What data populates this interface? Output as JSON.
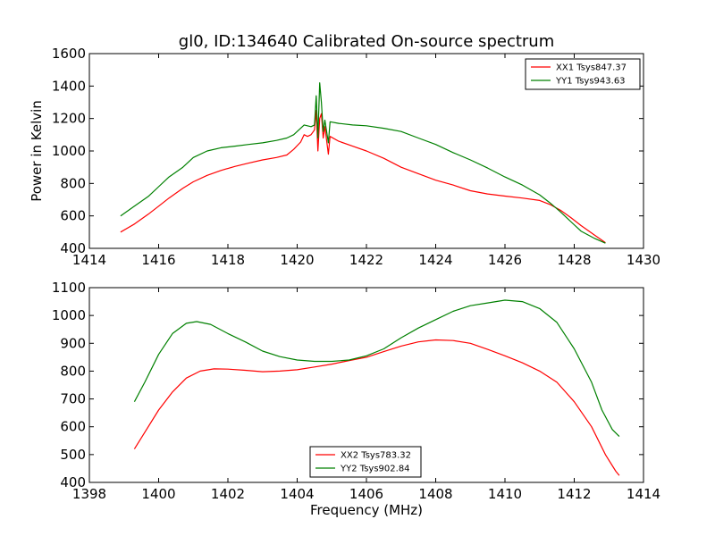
{
  "figure": {
    "title": "gl0, ID:134640 Calibrated On-source spectrum",
    "ylabel": "Power in Kelvin",
    "xlabel": "Frequency (MHz)"
  },
  "chart_data": [
    {
      "type": "line",
      "title": "gl0, ID:134640 Calibrated On-source spectrum",
      "ylabel": "Power in Kelvin",
      "xlabel": "",
      "xlim": [
        1414,
        1430
      ],
      "ylim": [
        400,
        1600
      ],
      "xticks": [
        "1414",
        "1416",
        "1418",
        "1420",
        "1422",
        "1424",
        "1426",
        "1428",
        "1430"
      ],
      "yticks": [
        "400",
        "600",
        "800",
        "1000",
        "1200",
        "1400",
        "1600"
      ],
      "legend": "top-right",
      "grid": false,
      "series": [
        {
          "name": "XX1 Tsys847.37",
          "color": "#ff0000",
          "points": [
            [
              1414.9,
              500
            ],
            [
              1415.3,
              550
            ],
            [
              1415.7,
              610
            ],
            [
              1416.0,
              660
            ],
            [
              1416.3,
              710
            ],
            [
              1416.7,
              770
            ],
            [
              1417.0,
              810
            ],
            [
              1417.4,
              850
            ],
            [
              1417.8,
              880
            ],
            [
              1418.2,
              905
            ],
            [
              1418.6,
              925
            ],
            [
              1419.0,
              945
            ],
            [
              1419.4,
              960
            ],
            [
              1419.7,
              975
            ],
            [
              1419.9,
              1010
            ],
            [
              1420.1,
              1055
            ],
            [
              1420.2,
              1100
            ],
            [
              1420.3,
              1090
            ],
            [
              1420.4,
              1100
            ],
            [
              1420.5,
              1130
            ],
            [
              1420.55,
              1250
            ],
            [
              1420.6,
              1000
            ],
            [
              1420.65,
              1200
            ],
            [
              1420.7,
              1230
            ],
            [
              1420.75,
              1080
            ],
            [
              1420.8,
              1150
            ],
            [
              1420.9,
              980
            ],
            [
              1420.95,
              1090
            ],
            [
              1421.2,
              1060
            ],
            [
              1421.6,
              1030
            ],
            [
              1422.0,
              1000
            ],
            [
              1422.5,
              955
            ],
            [
              1423.0,
              900
            ],
            [
              1423.5,
              860
            ],
            [
              1424.0,
              820
            ],
            [
              1424.5,
              790
            ],
            [
              1425.0,
              755
            ],
            [
              1425.5,
              735
            ],
            [
              1426.0,
              722
            ],
            [
              1426.5,
              710
            ],
            [
              1427.0,
              695
            ],
            [
              1427.3,
              670
            ],
            [
              1427.6,
              635
            ],
            [
              1427.9,
              590
            ],
            [
              1428.2,
              540
            ],
            [
              1428.6,
              480
            ],
            [
              1428.9,
              435
            ]
          ]
        },
        {
          "name": "YY1 Tsys943.63",
          "color": "#008000",
          "points": [
            [
              1414.9,
              600
            ],
            [
              1415.3,
              660
            ],
            [
              1415.7,
              720
            ],
            [
              1416.0,
              780
            ],
            [
              1416.3,
              840
            ],
            [
              1416.7,
              900
            ],
            [
              1417.0,
              960
            ],
            [
              1417.4,
              1000
            ],
            [
              1417.8,
              1020
            ],
            [
              1418.2,
              1030
            ],
            [
              1418.6,
              1040
            ],
            [
              1419.0,
              1050
            ],
            [
              1419.4,
              1065
            ],
            [
              1419.7,
              1080
            ],
            [
              1419.9,
              1100
            ],
            [
              1420.1,
              1140
            ],
            [
              1420.2,
              1160
            ],
            [
              1420.4,
              1150
            ],
            [
              1420.5,
              1160
            ],
            [
              1420.55,
              1340
            ],
            [
              1420.6,
              1080
            ],
            [
              1420.65,
              1420
            ],
            [
              1420.7,
              1300
            ],
            [
              1420.75,
              1120
            ],
            [
              1420.8,
              1190
            ],
            [
              1420.9,
              1050
            ],
            [
              1420.95,
              1180
            ],
            [
              1421.2,
              1170
            ],
            [
              1421.6,
              1160
            ],
            [
              1422.0,
              1155
            ],
            [
              1422.5,
              1140
            ],
            [
              1423.0,
              1120
            ],
            [
              1423.5,
              1080
            ],
            [
              1424.0,
              1040
            ],
            [
              1424.5,
              990
            ],
            [
              1425.0,
              945
            ],
            [
              1425.5,
              895
            ],
            [
              1426.0,
              840
            ],
            [
              1426.5,
              790
            ],
            [
              1427.0,
              730
            ],
            [
              1427.3,
              680
            ],
            [
              1427.6,
              625
            ],
            [
              1427.9,
              565
            ],
            [
              1428.2,
              505
            ],
            [
              1428.6,
              460
            ],
            [
              1428.9,
              432
            ]
          ]
        }
      ]
    },
    {
      "type": "line",
      "title": "",
      "ylabel": "",
      "xlabel": "Frequency (MHz)",
      "xlim": [
        1398,
        1414
      ],
      "ylim": [
        400,
        1100
      ],
      "xticks": [
        "1398",
        "1400",
        "1402",
        "1404",
        "1406",
        "1408",
        "1410",
        "1412",
        "1414"
      ],
      "yticks": [
        "400",
        "500",
        "600",
        "700",
        "800",
        "900",
        "1000",
        "1100"
      ],
      "legend": "bottom-center",
      "grid": false,
      "series": [
        {
          "name": "XX2 Tsys783.32",
          "color": "#ff0000",
          "points": [
            [
              1399.3,
              520
            ],
            [
              1399.6,
              580
            ],
            [
              1400.0,
              660
            ],
            [
              1400.4,
              725
            ],
            [
              1400.8,
              775
            ],
            [
              1401.2,
              800
            ],
            [
              1401.6,
              808
            ],
            [
              1402.0,
              807
            ],
            [
              1402.5,
              803
            ],
            [
              1403.0,
              798
            ],
            [
              1403.5,
              800
            ],
            [
              1404.0,
              805
            ],
            [
              1404.5,
              815
            ],
            [
              1405.0,
              825
            ],
            [
              1405.5,
              838
            ],
            [
              1406.0,
              850
            ],
            [
              1406.5,
              870
            ],
            [
              1407.0,
              890
            ],
            [
              1407.5,
              905
            ],
            [
              1408.0,
              912
            ],
            [
              1408.5,
              910
            ],
            [
              1409.0,
              900
            ],
            [
              1409.5,
              878
            ],
            [
              1410.0,
              855
            ],
            [
              1410.5,
              830
            ],
            [
              1411.0,
              800
            ],
            [
              1411.5,
              760
            ],
            [
              1412.0,
              690
            ],
            [
              1412.5,
              600
            ],
            [
              1412.9,
              500
            ],
            [
              1413.2,
              440
            ],
            [
              1413.3,
              425
            ]
          ]
        },
        {
          "name": "YY2 Tsys902.84",
          "color": "#008000",
          "points": [
            [
              1399.3,
              690
            ],
            [
              1399.6,
              760
            ],
            [
              1400.0,
              860
            ],
            [
              1400.4,
              935
            ],
            [
              1400.8,
              972
            ],
            [
              1401.1,
              978
            ],
            [
              1401.5,
              968
            ],
            [
              1402.0,
              935
            ],
            [
              1402.5,
              905
            ],
            [
              1403.0,
              872
            ],
            [
              1403.5,
              852
            ],
            [
              1404.0,
              840
            ],
            [
              1404.5,
              835
            ],
            [
              1405.0,
              835
            ],
            [
              1405.5,
              840
            ],
            [
              1406.0,
              855
            ],
            [
              1406.5,
              880
            ],
            [
              1407.0,
              920
            ],
            [
              1407.5,
              955
            ],
            [
              1408.0,
              985
            ],
            [
              1408.5,
              1015
            ],
            [
              1409.0,
              1035
            ],
            [
              1409.5,
              1045
            ],
            [
              1410.0,
              1055
            ],
            [
              1410.5,
              1050
            ],
            [
              1411.0,
              1025
            ],
            [
              1411.5,
              975
            ],
            [
              1412.0,
              880
            ],
            [
              1412.5,
              760
            ],
            [
              1412.8,
              660
            ],
            [
              1413.1,
              590
            ],
            [
              1413.3,
              565
            ]
          ]
        }
      ]
    }
  ]
}
